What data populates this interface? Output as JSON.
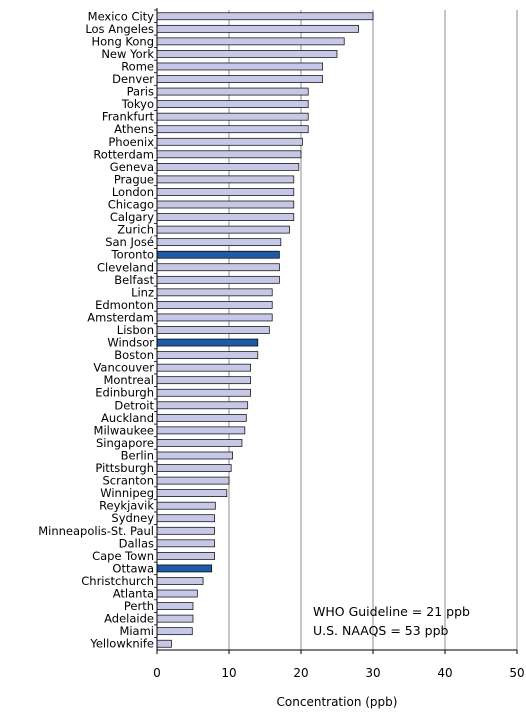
{
  "chart_data": {
    "type": "bar",
    "orientation": "horizontal",
    "xlabel": "Concentration (ppb)",
    "xlim": [
      0,
      50
    ],
    "xticks": [
      0,
      10,
      20,
      30,
      40,
      50
    ],
    "grid": "vertical gridlines at major ticks",
    "colors": {
      "default_bar": "#c7c7e6",
      "highlight_bar": "#1f5aa6",
      "bar_edge": "#000000"
    },
    "categories": [
      "Mexico City",
      "Los Angeles",
      "Hong Kong",
      "New York",
      "Rome",
      "Denver",
      "Paris",
      "Tokyo",
      "Frankfurt",
      "Athens",
      "Phoenix",
      "Rotterdam",
      "Geneva",
      "Prague",
      "London",
      "Chicago",
      "Calgary",
      "Zurich",
      "San José",
      "Toronto",
      "Cleveland",
      "Belfast",
      "Linz",
      "Edmonton",
      "Amsterdam",
      "Lisbon",
      "Windsor",
      "Boston",
      "Vancouver",
      "Montreal",
      "Edinburgh",
      "Detroit",
      "Auckland",
      "Milwaukee",
      "Singapore",
      "Berlin",
      "Pittsburgh",
      "Scranton",
      "Winnipeg",
      "Reykjavik",
      "Sydney",
      "Minneapolis-St. Paul",
      "Dallas",
      "Cape Town",
      "Ottawa",
      "Christchurch",
      "Atlanta",
      "Perth",
      "Adelaide",
      "Miami",
      "Yellowknife"
    ],
    "values": [
      30,
      28,
      26,
      25,
      23,
      23,
      21,
      21,
      21,
      21,
      20.2,
      20,
      19.7,
      19,
      19,
      19,
      19,
      18.4,
      17.2,
      17,
      17,
      17,
      16,
      16,
      16,
      15.6,
      14,
      14,
      13,
      13,
      13,
      12.6,
      12.4,
      12.2,
      11.8,
      10.5,
      10.3,
      10,
      9.7,
      8.1,
      8,
      8,
      8,
      8,
      7.6,
      6.4,
      5.6,
      5,
      5,
      4.9,
      2
    ],
    "highlighted": [
      "Toronto",
      "Windsor",
      "Ottawa"
    ],
    "annotations": [
      "WHO Guideline = 21 ppb",
      "U.S. NAAQS = 53 ppb"
    ]
  }
}
